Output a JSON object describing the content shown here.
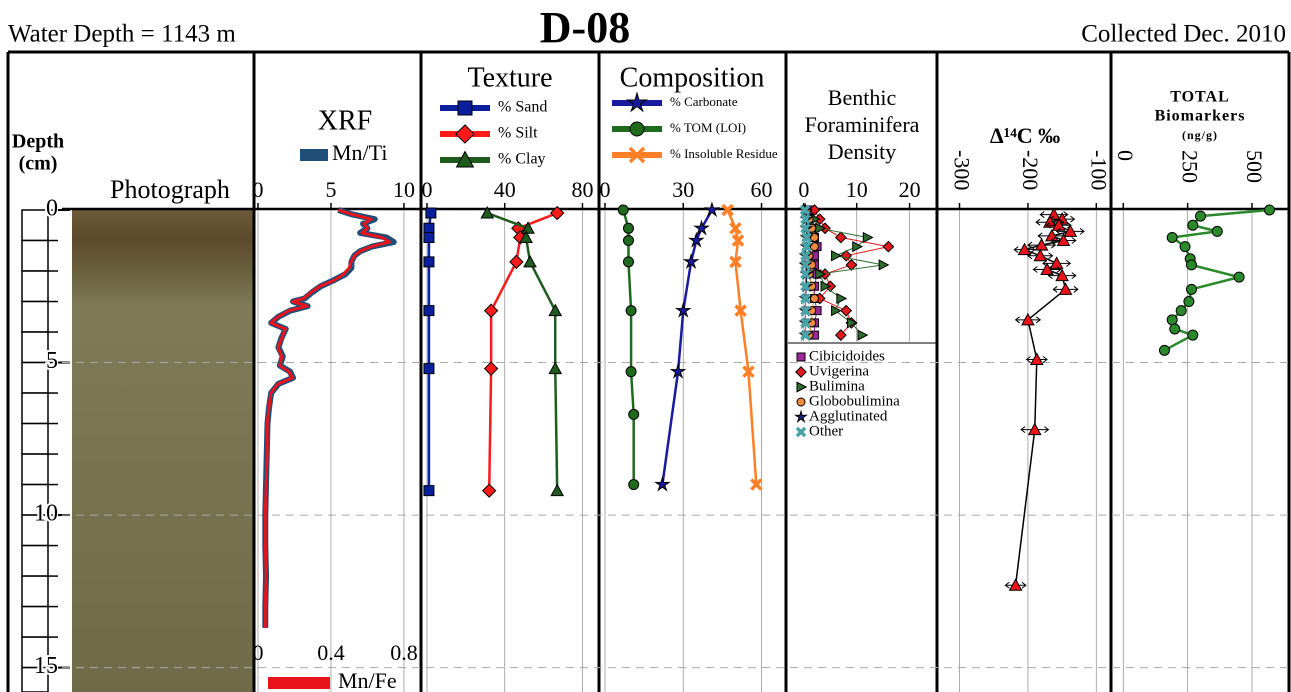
{
  "header": {
    "left": "Water Depth = 1143 m",
    "title": "D-08",
    "right": "Collected Dec. 2010"
  },
  "depth_axis": {
    "label": "Depth",
    "unit": "(cm)",
    "ylim": [
      0,
      15.8
    ],
    "yticks": [
      0,
      5,
      10,
      15
    ]
  },
  "chart_data": [
    {
      "type": "image",
      "title": "Photograph"
    },
    {
      "type": "line",
      "title": "XRF",
      "xlim": [
        0,
        11.1
      ],
      "xticks": [
        0,
        5,
        10
      ],
      "x2lim": [
        0,
        0.888
      ],
      "x2ticks": [
        0,
        0.4,
        0.8
      ],
      "depth": [
        0,
        0.15,
        0.3,
        0.45,
        0.6,
        0.75,
        0.9,
        1.05,
        1.2,
        1.35,
        1.5,
        1.7,
        1.9,
        2.1,
        2.3,
        2.5,
        2.7,
        2.9,
        3.0,
        3.15,
        3.3,
        3.5,
        3.7,
        3.9,
        4.2,
        4.5,
        4.8,
        5.1,
        5.3,
        5.5,
        5.7,
        6.0,
        6.5,
        7,
        8,
        9,
        10,
        11,
        12,
        13,
        13.7
      ],
      "series": [
        {
          "name": "Mn/Ti",
          "color": "#1f4e79",
          "values": [
            5.5,
            6.5,
            8.0,
            7.2,
            7.5,
            7.0,
            8.8,
            9.3,
            7.8,
            7.0,
            6.6,
            6.4,
            6.4,
            6.0,
            5.2,
            4.3,
            3.7,
            3.2,
            2.4,
            3.4,
            2.2,
            1.4,
            0.9,
            1.9,
            1.6,
            1.4,
            1.7,
            1.5,
            2.2,
            2.4,
            1.4,
            0.9,
            0.75,
            0.65,
            0.6,
            0.55,
            0.5,
            0.5,
            0.55,
            0.5,
            0.5
          ]
        },
        {
          "name": "Mn/Fe",
          "color": "#e8131b",
          "axis": "x2",
          "values": [
            0.44,
            0.52,
            0.62,
            0.58,
            0.6,
            0.57,
            0.68,
            0.72,
            0.62,
            0.56,
            0.53,
            0.51,
            0.5,
            0.47,
            0.42,
            0.34,
            0.29,
            0.25,
            0.19,
            0.27,
            0.17,
            0.11,
            0.07,
            0.15,
            0.13,
            0.11,
            0.13,
            0.12,
            0.17,
            0.19,
            0.11,
            0.07,
            0.06,
            0.05,
            0.05,
            0.045,
            0.04,
            0.04,
            0.045,
            0.04,
            0.04
          ]
        }
      ]
    },
    {
      "type": "line",
      "title": "Texture",
      "xlim": [
        0,
        88
      ],
      "xticks": [
        0,
        40,
        80
      ],
      "depth": [
        0.1,
        0.6,
        0.9,
        1.7,
        3.3,
        5.2,
        9.2
      ],
      "series": [
        {
          "name": "% Sand",
          "color": "#0a1f9e",
          "marker": "square",
          "values": [
            2,
            1,
            1,
            1,
            1,
            1,
            1
          ]
        },
        {
          "name": "% Silt",
          "color": "#ff1a1a",
          "marker": "diamond",
          "values": [
            67,
            47,
            48,
            46,
            33,
            33,
            32
          ]
        },
        {
          "name": "% Clay",
          "color": "#1e5c1e",
          "marker": "triangle",
          "values": [
            31,
            52,
            51,
            53,
            66,
            66,
            67
          ]
        }
      ]
    },
    {
      "type": "line",
      "title": "Composition",
      "xlim": [
        0,
        69
      ],
      "xticks": [
        0,
        30,
        60
      ],
      "series": [
        {
          "name": "% Carbonate",
          "color": "#1a1aa0",
          "marker": "star",
          "depth": [
            0,
            0.6,
            1.0,
            1.7,
            3.3,
            5.3,
            9.0
          ],
          "values": [
            41,
            37,
            35,
            33,
            30,
            28,
            22
          ]
        },
        {
          "name": "% TOM (LOI)",
          "color": "#1e6b1e",
          "marker": "circle",
          "depth": [
            0,
            0.6,
            1.0,
            1.7,
            3.3,
            5.3,
            6.7,
            9.0
          ],
          "values": [
            7,
            9,
            9,
            9,
            10,
            10,
            11,
            11
          ]
        },
        {
          "name": "% Insoluble Residue",
          "color": "#ff7f27",
          "marker": "x",
          "depth": [
            0,
            0.6,
            1.0,
            1.7,
            3.3,
            5.3,
            9.0
          ],
          "values": [
            47,
            50,
            51,
            50,
            52,
            55,
            58
          ]
        }
      ]
    },
    {
      "type": "line",
      "title_lines": [
        "Benthic",
        "Foraminifera",
        "Density"
      ],
      "xlim": [
        -3,
        25
      ],
      "xticks": [
        0,
        10,
        20
      ],
      "depth": [
        0,
        0.3,
        0.6,
        0.9,
        1.2,
        1.5,
        1.8,
        2.1,
        2.5,
        2.9,
        3.3,
        3.7,
        4.1
      ],
      "series": [
        {
          "name": "Cibicidoides",
          "color": "#9b2a9b",
          "marker": "square",
          "values": [
            1,
            1,
            1.5,
            2,
            2.5,
            2,
            2,
            2.5,
            2,
            2,
            2.5,
            2,
            2
          ]
        },
        {
          "name": "Uvigerina",
          "color": "#e0191f",
          "marker": "diamond",
          "values": [
            2,
            3,
            4,
            7,
            16,
            8,
            9,
            4,
            5,
            3,
            8,
            9,
            7
          ]
        },
        {
          "name": "Bulimina",
          "color": "#2e6b2e",
          "marker": "triangle-right",
          "values": [
            0.5,
            2,
            3,
            12,
            10,
            6,
            15,
            3,
            4,
            7,
            6,
            9,
            11
          ]
        },
        {
          "name": "Globobulimina",
          "color": "#f08a3c",
          "marker": "circle",
          "values": [
            0.5,
            1,
            1.5,
            2,
            2,
            1,
            1.5,
            1,
            1.5,
            2,
            1.5,
            1.5,
            1
          ]
        },
        {
          "name": "Agglutinated",
          "color": "#1a237e",
          "marker": "star",
          "values": [
            0.3,
            0.5,
            0.5,
            0.5,
            0.5,
            0.3,
            0.3,
            0.5,
            0.5,
            0.3,
            0.3,
            0.3,
            0.3
          ]
        },
        {
          "name": "Other",
          "color": "#4aa3a8",
          "marker": "x",
          "values": [
            0.2,
            0.3,
            0.3,
            0.5,
            0.5,
            0.3,
            0.3,
            0.3,
            0.3,
            0.3,
            0.3,
            0.3,
            0.3
          ]
        }
      ]
    },
    {
      "type": "line",
      "title": "Δ¹⁴C ‰",
      "xlim": [
        -330,
        -80
      ],
      "xticks": [
        -300,
        -200,
        -100
      ],
      "depth": [
        0.15,
        0.3,
        0.4,
        0.5,
        0.7,
        0.85,
        1.0,
        1.15,
        1.3,
        1.5,
        1.75,
        1.95,
        2.15,
        2.6,
        3.6,
        4.9,
        7.2,
        12.3
      ],
      "series": [
        {
          "color": "#000000",
          "marker": "triangle",
          "marker_color": "#e8131b",
          "values": [
            -162,
            -150,
            -168,
            -155,
            -138,
            -165,
            -148,
            -180,
            -205,
            -182,
            -158,
            -172,
            -150,
            -145,
            -200,
            -187,
            -190,
            -218
          ],
          "errors": [
            20,
            18,
            20,
            18,
            20,
            20,
            18,
            20,
            15,
            18,
            20,
            20,
            20,
            18,
            18,
            15,
            20,
            15
          ]
        }
      ]
    },
    {
      "type": "line",
      "title_lines": [
        "TOTAL",
        "Biomarkers",
        "(ng/g)"
      ],
      "xlim": [
        -40,
        640
      ],
      "xticks": [
        0,
        250,
        500
      ],
      "depth": [
        0,
        0.2,
        0.5,
        0.7,
        0.9,
        1.2,
        1.6,
        1.8,
        2.2,
        2.6,
        3.0,
        3.3,
        3.6,
        3.9,
        4.1,
        4.6
      ],
      "series": [
        {
          "color": "#2a8a2a",
          "marker": "circle",
          "values": [
            568,
            300,
            270,
            365,
            190,
            240,
            260,
            265,
            450,
            265,
            255,
            225,
            190,
            200,
            270,
            160
          ]
        }
      ]
    }
  ]
}
